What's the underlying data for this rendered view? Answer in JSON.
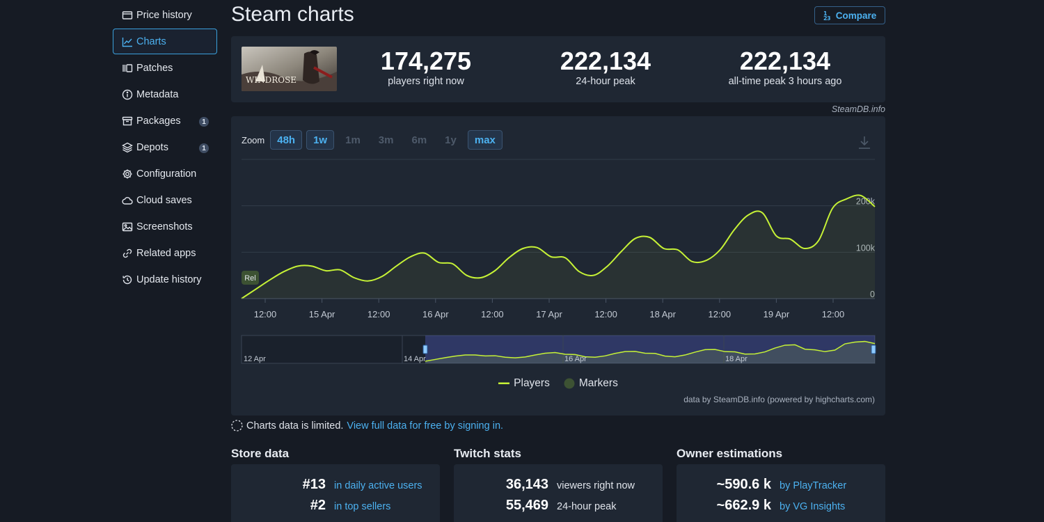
{
  "sidebar": {
    "items": [
      {
        "label": "Price history",
        "icon": "price-tag-icon"
      },
      {
        "label": "Charts",
        "icon": "line-chart-icon",
        "active": true
      },
      {
        "label": "Patches",
        "icon": "patches-icon"
      },
      {
        "label": "Metadata",
        "icon": "info-icon"
      },
      {
        "label": "Packages",
        "icon": "package-icon",
        "badge": "1"
      },
      {
        "label": "Depots",
        "icon": "layers-icon",
        "badge": "1"
      },
      {
        "label": "Configuration",
        "icon": "gear-icon"
      },
      {
        "label": "Cloud saves",
        "icon": "cloud-icon"
      },
      {
        "label": "Screenshots",
        "icon": "image-icon"
      },
      {
        "label": "Related apps",
        "icon": "link-icon"
      },
      {
        "label": "Update history",
        "icon": "history-icon"
      }
    ]
  },
  "header": {
    "title": "Steam charts",
    "compare_label": "Compare"
  },
  "stats": {
    "game_logo_text": "WINDROSE",
    "current": {
      "value": "174,275",
      "label": "players right now"
    },
    "peak_24h": {
      "value": "222,134",
      "label": "24-hour peak"
    },
    "peak_all": {
      "value": "222,134",
      "label": "all-time peak 3 hours ago"
    },
    "credit": "SteamDB.info"
  },
  "chart": {
    "zoom_label": "Zoom",
    "zoom_options": [
      {
        "label": "48h",
        "selected": true
      },
      {
        "label": "1w",
        "selected": true
      },
      {
        "label": "1m",
        "selected": false
      },
      {
        "label": "3m",
        "selected": false
      },
      {
        "label": "6m",
        "selected": false
      },
      {
        "label": "1y",
        "selected": false
      },
      {
        "label": "max",
        "selected": true
      }
    ],
    "release_marker": "Rel",
    "legend_players": "Players",
    "legend_markers": "Markers",
    "credit": "data by SteamDB.info (powered by highcharts.com)",
    "navigator_labels": [
      "12 Apr",
      "14 Apr",
      "16 Apr",
      "18 Apr"
    ],
    "line_color": "#c6f236"
  },
  "chart_data": {
    "type": "line",
    "title": "",
    "xlabel": "",
    "ylabel": "",
    "x_ticks": [
      "12:00",
      "15 Apr",
      "12:00",
      "16 Apr",
      "12:00",
      "17 Apr",
      "12:00",
      "18 Apr",
      "12:00",
      "19 Apr",
      "12:00"
    ],
    "y_ticks": [
      "0",
      "100k",
      "200k"
    ],
    "ylim": [
      0,
      300000
    ],
    "series": [
      {
        "name": "Players",
        "x": [
          "14 Apr 06:00",
          "14 Apr 09:00",
          "14 Apr 12:00",
          "14 Apr 15:00",
          "14 Apr 18:00",
          "14 Apr 21:00",
          "15 Apr 00:00",
          "15 Apr 03:00",
          "15 Apr 06:00",
          "15 Apr 09:00",
          "15 Apr 12:00",
          "15 Apr 15:00",
          "15 Apr 18:00",
          "15 Apr 21:00",
          "16 Apr 00:00",
          "16 Apr 03:00",
          "16 Apr 06:00",
          "16 Apr 09:00",
          "16 Apr 12:00",
          "16 Apr 15:00",
          "16 Apr 18:00",
          "16 Apr 21:00",
          "17 Apr 00:00",
          "17 Apr 03:00",
          "17 Apr 06:00",
          "17 Apr 09:00",
          "17 Apr 12:00",
          "17 Apr 15:00",
          "17 Apr 18:00",
          "17 Apr 21:00",
          "18 Apr 00:00",
          "18 Apr 03:00",
          "18 Apr 06:00",
          "18 Apr 09:00",
          "18 Apr 12:00",
          "18 Apr 15:00",
          "18 Apr 18:00",
          "18 Apr 21:00",
          "19 Apr 00:00",
          "19 Apr 03:00",
          "19 Apr 06:00",
          "19 Apr 09:00",
          "19 Apr 12:00",
          "19 Apr 15:00",
          "19 Apr 18:00",
          "19 Apr 21:00"
        ],
        "values": [
          0,
          20000,
          40000,
          58000,
          70000,
          70000,
          60000,
          62000,
          45000,
          38000,
          48000,
          70000,
          90000,
          98000,
          78000,
          75000,
          50000,
          45000,
          60000,
          88000,
          108000,
          110000,
          90000,
          88000,
          58000,
          50000,
          70000,
          102000,
          130000,
          132000,
          108000,
          105000,
          80000,
          82000,
          105000,
          148000,
          180000,
          185000,
          135000,
          128000,
          108000,
          125000,
          195000,
          215000,
          222134,
          198000
        ]
      }
    ],
    "grid": true,
    "legend": "bottom-center"
  },
  "limited": {
    "text": "Charts data is limited.",
    "link": "View full data for free by signing in."
  },
  "store_data": {
    "title": "Store data",
    "rows": [
      {
        "value": "#13",
        "label": "in daily active users"
      },
      {
        "value": "#2",
        "label": "in top sellers"
      }
    ]
  },
  "twitch_stats": {
    "title": "Twitch stats",
    "rows": [
      {
        "value": "36,143",
        "label": "viewers right now"
      },
      {
        "value": "55,469",
        "label": "24-hour peak"
      }
    ]
  },
  "owner_estimations": {
    "title": "Owner estimations",
    "rows": [
      {
        "value": "~590.6 k",
        "label": "by PlayTracker"
      },
      {
        "value": "~662.9 k",
        "label": "by VG Insights"
      }
    ]
  }
}
